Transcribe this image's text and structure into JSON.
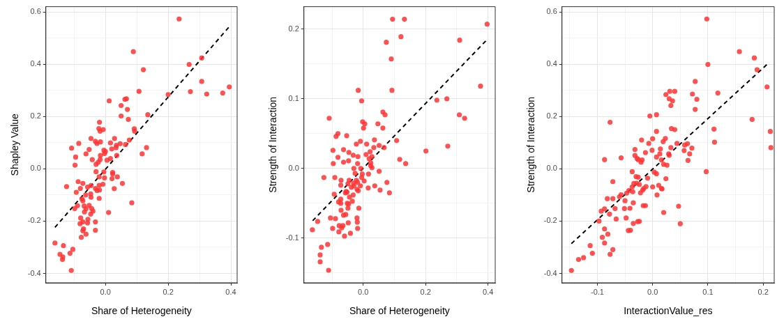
{
  "chart_data": [
    {
      "type": "scatter",
      "xlabel": "Share of Heterogeneity",
      "ylabel": "Shapley Value",
      "xlim": [
        -0.19,
        0.42
      ],
      "ylim": [
        -0.436,
        0.62
      ],
      "xticks": [
        {
          "value": -0.1,
          "label": null
        },
        {
          "value": 0,
          "label": "0.0"
        },
        {
          "value": 0.1,
          "label": null
        },
        0.2,
        {
          "value": 0.3,
          "label": null
        },
        0.4
      ],
      "yticks": [
        -0.4,
        {
          "value": -0.3,
          "label": null
        },
        -0.2,
        {
          "value": -0.1,
          "label": null
        },
        {
          "value": 0,
          "label": "0.0"
        },
        {
          "value": 0.1,
          "label": null
        },
        0.2,
        {
          "value": 0.3,
          "label": null
        },
        0.4,
        {
          "value": 0.5,
          "label": null
        },
        0.6
      ],
      "grid": true,
      "legend": false,
      "series": [
        {
          "type": "scatter",
          "color": "#ff3333",
          "marker": "circle",
          "x": [
            0.235,
            0.089,
            0.121,
            0.267,
            0.307,
            0.307,
            0.395,
            0.374,
            0.323,
            0.271,
            0.2,
            0.107,
            0.012,
            0.067,
            0.062,
            0.05,
            0.07,
            0.05,
            0.073,
            0.135,
            -0.019,
            -0.021,
            -0.007,
            -0.017,
            0.092,
            0.093,
            -0.046,
            0.029,
            0.076,
            -0.032,
            -0.016,
            -0.027,
            0.016,
            0.047,
            0.035,
            0.064,
            -0.085,
            -0.108,
            -0.052,
            0.02,
            0.034,
            0.131,
            0.117,
            -0.095,
            -0.062,
            -0.005,
            0,
            -0.003,
            -0.016,
            -0.042,
            -0.017,
            0.005,
            0.016,
            0.036,
            -0.097,
            -0.03,
            -0.023,
            -0.03,
            -0.005,
            0.023,
            0.023,
            -0.02,
            -0.003,
            0.021,
            0.038,
            -0.124,
            -0.087,
            -0.072,
            -0.08,
            -0.057,
            -0.046,
            -0.008,
            -0.02,
            0.054,
            0.028,
            -0.093,
            -0.032,
            -0.027,
            -0.019,
            -0.047,
            -0.063,
            -0.046,
            -0.02,
            -0.075,
            -0.072,
            0.084,
            -0.089,
            -0.098,
            -0.068,
            -0.052,
            -0.044,
            -0.062,
            -0.067,
            -0.04,
            -0.047,
            0.01,
            -0.079,
            -0.056,
            -0.081,
            -0.072,
            -0.057,
            -0.032,
            -0.07,
            -0.072,
            -0.032,
            -0.062,
            -0.077,
            -0.161,
            -0.134,
            -0.145,
            -0.136,
            -0.137,
            -0.113,
            -0.104,
            -0.109
          ],
          "values": [
            0.573,
            0.448,
            0.379,
            0.399,
            0.424,
            0.334,
            0.313,
            0.29,
            0.286,
            0.295,
            0.284,
            0.296,
            0.26,
            0.268,
            0.266,
            0.242,
            0.227,
            0.202,
            0.189,
            0.207,
            0.178,
            0.154,
            0.15,
            0.144,
            0.153,
            0.144,
            0.116,
            0.116,
            0.11,
            0.105,
            0.103,
            0.097,
            0.099,
            0.096,
            0.09,
            0.093,
            0.097,
            0.079,
            0.074,
            0.076,
            0.081,
            0.081,
            0.057,
            0.045,
            0.057,
            0.071,
            0.066,
            0.058,
            0.051,
            0.035,
            0.035,
            0.033,
            0.039,
            0.051,
            0.014,
            0.017,
            0.025,
            -0.011,
            -0.012,
            -0.014,
            -0.02,
            -0.031,
            -0.035,
            -0.038,
            -0.031,
            -0.068,
            -0.049,
            -0.056,
            -0.075,
            -0.07,
            -0.064,
            -0.059,
            -0.063,
            -0.056,
            -0.076,
            -0.09,
            -0.075,
            -0.083,
            -0.081,
            -0.096,
            -0.1,
            -0.109,
            -0.113,
            -0.115,
            -0.122,
            -0.13,
            -0.141,
            -0.152,
            -0.142,
            -0.14,
            -0.152,
            -0.153,
            -0.165,
            -0.162,
            -0.173,
            -0.167,
            -0.188,
            -0.193,
            -0.21,
            -0.203,
            -0.207,
            -0.203,
            -0.23,
            -0.237,
            -0.235,
            -0.25,
            -0.262,
            -0.284,
            -0.294,
            -0.327,
            -0.337,
            -0.347,
            -0.323,
            -0.308,
            -0.389
          ]
        },
        {
          "type": "line",
          "color": "#000000",
          "marker": "none",
          "line_style": "dashed",
          "x": [
            -0.161,
            0.396
          ],
          "values": [
            -0.224,
            0.545
          ]
        }
      ]
    },
    {
      "type": "scatter",
      "xlabel": "Share of Heterogeneity",
      "ylabel": "Strength of Interaction",
      "xlim": [
        -0.19,
        0.423
      ],
      "ylim": [
        -0.164,
        0.232
      ],
      "xticks": [
        {
          "value": -0.1,
          "label": null
        },
        {
          "value": 0,
          "label": "0.0"
        },
        {
          "value": 0.1,
          "label": null
        },
        0.2,
        {
          "value": 0.3,
          "label": null
        },
        0.4
      ],
      "yticks": [
        {
          "value": -0.15,
          "label": null
        },
        -0.1,
        {
          "value": -0.05,
          "label": null
        },
        {
          "value": 0,
          "label": "0.0"
        },
        {
          "value": 0.05,
          "label": null
        },
        0.1,
        {
          "value": 0.15,
          "label": null
        },
        0.2
      ],
      "grid": true,
      "legend": false,
      "series": [
        {
          "type": "scatter",
          "color": "#ff3333",
          "marker": "circle",
          "x": [
            0.094,
            0.132,
            0.397,
            0.121,
            0.309,
            0.074,
            0.09,
            0.376,
            -0.016,
            0.092,
            0.268,
            0.236,
            -0.005,
            0.063,
            0.07,
            0.308,
            0.325,
            -0.109,
            -0.002,
            0.005,
            0.047,
            0.001,
            0.063,
            -0.081,
            -0.087,
            -0.053,
            -0.009,
            0.036,
            0.107,
            -0.022,
            0.011,
            0.051,
            0.034,
            0.067,
            0.271,
            -0.097,
            -0.063,
            0.201,
            -0.046,
            0.022,
            -0.032,
            0.009,
            -0.081,
            -0.017,
            0.028,
            0.019,
            -0.047,
            -0.063,
            0.117,
            0.136,
            -0.096,
            -0.018,
            0.024,
            0.024,
            -0.03,
            -0.008,
            0.028,
            -0.026,
            -0.003,
            0.017,
            0.051,
            -0.126,
            -0.091,
            -0.005,
            -0.071,
            0.003,
            -0.045,
            -0.022,
            -0.072,
            -0.049,
            -0.031,
            -0.018,
            -0.009,
            0.076,
            -0.038,
            -0.03,
            0.016,
            0.037,
            -0.02,
            -0.016,
            -0.055,
            0.054,
            -0.057,
            -0.052,
            0.084,
            -0.093,
            -0.032,
            -0.072,
            -0.044,
            -0.035,
            -0.079,
            -0.072,
            -0.051,
            -0.047,
            -0.049,
            -0.014,
            -0.071,
            -0.063,
            -0.056,
            -0.105,
            -0.089,
            -0.02,
            -0.146,
            -0.019,
            -0.048,
            -0.077,
            -0.065,
            -0.069,
            -0.098,
            -0.018,
            -0.163,
            -0.078,
            -0.041,
            -0.06,
            -0.114,
            -0.134,
            -0.138,
            -0.138,
            -0.111
          ],
          "values": [
            0.214,
            0.214,
            0.207,
            0.189,
            0.184,
            0.181,
            0.157,
            0.118,
            0.112,
            0.112,
            0.1,
            0.098,
            0.097,
            0.081,
            0.077,
            0.077,
            0.072,
            0.072,
            0.067,
            0.064,
            0.064,
            0.058,
            0.058,
            0.05,
            0.046,
            0.047,
            0.039,
            0.041,
            0.04,
            0.035,
            0.035,
            0.033,
            0.03,
            0.03,
            0.032,
            0.026,
            0.027,
            0.025,
            0.023,
            0.024,
            0.019,
            0.02,
            0.016,
            0.017,
            0.017,
            0.014,
            0.011,
            0.009,
            0.013,
            0.007,
            0.007,
            0.007,
            0.008,
            0.004,
            0,
            0,
            0.001,
            -0.007,
            -0.008,
            -0.008,
            -0.004,
            -0.013,
            -0.013,
            -0.013,
            -0.017,
            -0.018,
            -0.017,
            -0.017,
            -0.024,
            -0.022,
            -0.021,
            -0.02,
            -0.025,
            -0.02,
            -0.027,
            -0.025,
            -0.028,
            -0.025,
            -0.03,
            -0.032,
            -0.033,
            -0.031,
            -0.035,
            -0.034,
            -0.035,
            -0.037,
            -0.038,
            -0.044,
            -0.041,
            -0.047,
            -0.048,
            -0.05,
            -0.05,
            -0.051,
            -0.057,
            -0.057,
            -0.06,
            -0.067,
            -0.066,
            -0.071,
            -0.072,
            -0.071,
            -0.076,
            -0.077,
            -0.078,
            -0.082,
            -0.082,
            -0.085,
            -0.086,
            -0.086,
            -0.088,
            -0.091,
            -0.093,
            -0.097,
            -0.109,
            -0.113,
            -0.124,
            -0.134,
            -0.146
          ]
        },
        {
          "type": "line",
          "color": "#000000",
          "marker": "none",
          "line_style": "dashed",
          "x": [
            -0.162,
            0.393
          ],
          "values": [
            -0.075,
            0.183
          ]
        }
      ]
    },
    {
      "type": "scatter",
      "xlabel": "InteractionValue_res",
      "ylabel": "Strength of Interaction",
      "xlim": [
        -0.164,
        0.22
      ],
      "ylim": [
        -0.436,
        0.62
      ],
      "xticks": [
        {
          "value": -0.15,
          "label": null
        },
        -0.1,
        {
          "value": -0.05,
          "label": null
        },
        {
          "value": 0,
          "label": "0.0"
        },
        {
          "value": 0.05,
          "label": null
        },
        0.1,
        {
          "value": 0.15,
          "label": null
        },
        0.2
      ],
      "yticks": [
        -0.4,
        {
          "value": -0.3,
          "label": null
        },
        -0.2,
        {
          "value": -0.1,
          "label": null
        },
        {
          "value": 0,
          "label": "0.0"
        },
        {
          "value": 0.1,
          "label": null
        },
        0.2,
        {
          "value": 0.3,
          "label": null
        },
        0.4,
        {
          "value": 0.5,
          "label": null
        },
        0.6
      ],
      "grid": true,
      "legend": false,
      "series": [
        {
          "type": "scatter",
          "color": "#ff3333",
          "marker": "circle",
          "x": [
            0.098,
            0.157,
            0.184,
            0.1,
            0.189,
            0.077,
            0.207,
            0.031,
            0.04,
            0.118,
            0.024,
            0.072,
            0.03,
            0.08,
            0.036,
            0.033,
            0.077,
            -0.005,
            0.007,
            0.18,
            -0.077,
            0.034,
            0.04,
            0.111,
            0.213,
            0.007,
            -0.02,
            0,
            0.023,
            -0.007,
            0.019,
            0.044,
            0.063,
            0.112,
            0.214,
            0.033,
            0.058,
            0.071,
            -0.032,
            -0.001,
            0.014,
            0.057,
            -0.013,
            0.013,
            0.067,
            0.029,
            -0.032,
            0.007,
            0.03,
            0.064,
            -0.057,
            -0.087,
            -0.028,
            -0.019,
            -0.026,
            -0.021,
            0.016,
            0.02,
            0.026,
            -0.037,
            0.003,
            0.007,
            0.097,
            -0.03,
            -0.026,
            -0.009,
            0.024,
            -0.072,
            -0.034,
            -0.029,
            -0.024,
            0.011,
            0,
            -0.037,
            -0.012,
            -0.016,
            0.016,
            0.017,
            -0.043,
            -0.018,
            -0.036,
            -0.022,
            -0.047,
            -0.057,
            0.008,
            -0.06,
            -0.082,
            -0.072,
            -0.05,
            -0.035,
            -0.017,
            -0.013,
            0.047,
            -0.093,
            -0.087,
            -0.068,
            -0.051,
            -0.041,
            -0.078,
            0.02,
            -0.066,
            -0.048,
            -0.097,
            -0.027,
            -0.024,
            -0.035,
            0.05,
            -0.087,
            -0.044,
            -0.04,
            -0.081,
            -0.091,
            -0.087,
            -0.113,
            -0.072,
            -0.109,
            -0.077,
            -0.125,
            -0.134,
            -0.147
          ],
          "values": [
            0.573,
            0.448,
            0.424,
            0.399,
            0.379,
            0.334,
            0.313,
            0.296,
            0.296,
            0.29,
            0.284,
            0.286,
            0.268,
            0.266,
            0.26,
            0.242,
            0.227,
            0.202,
            0.207,
            0.189,
            0.178,
            0.154,
            0.15,
            0.152,
            0.143,
            0.143,
            0.11,
            0.115,
            0.116,
            0.097,
            0.104,
            0.097,
            0.096,
            0.102,
            0.081,
            0.081,
            0.091,
            0.079,
            0.074,
            0.071,
            0.076,
            0.07,
            0.062,
            0.057,
            0.057,
            0.057,
            0.051,
            0.045,
            0.052,
            0.032,
            0.042,
            0.035,
            0.039,
            0.034,
            0.035,
            0.025,
            0.034,
            0.017,
            0.014,
            -0.011,
            -0.013,
            -0.019,
            -0.011,
            -0.03,
            -0.032,
            -0.036,
            -0.038,
            -0.049,
            -0.056,
            -0.055,
            -0.06,
            -0.063,
            -0.069,
            -0.069,
            -0.068,
            -0.075,
            -0.075,
            -0.077,
            -0.083,
            -0.081,
            -0.088,
            -0.092,
            -0.093,
            -0.099,
            -0.1,
            -0.107,
            -0.114,
            -0.114,
            -0.122,
            -0.13,
            -0.141,
            -0.141,
            -0.143,
            -0.162,
            -0.153,
            -0.152,
            -0.152,
            -0.151,
            -0.173,
            -0.167,
            -0.192,
            -0.188,
            -0.2,
            -0.202,
            -0.201,
            -0.209,
            -0.21,
            -0.23,
            -0.236,
            -0.235,
            -0.25,
            -0.262,
            -0.284,
            -0.294,
            -0.309,
            -0.323,
            -0.327,
            -0.34,
            -0.347,
            -0.389
          ]
        },
        {
          "type": "line",
          "color": "#000000",
          "marker": "none",
          "line_style": "dashed",
          "x": [
            -0.147,
            0.21
          ],
          "values": [
            -0.286,
            0.405
          ]
        }
      ]
    }
  ]
}
